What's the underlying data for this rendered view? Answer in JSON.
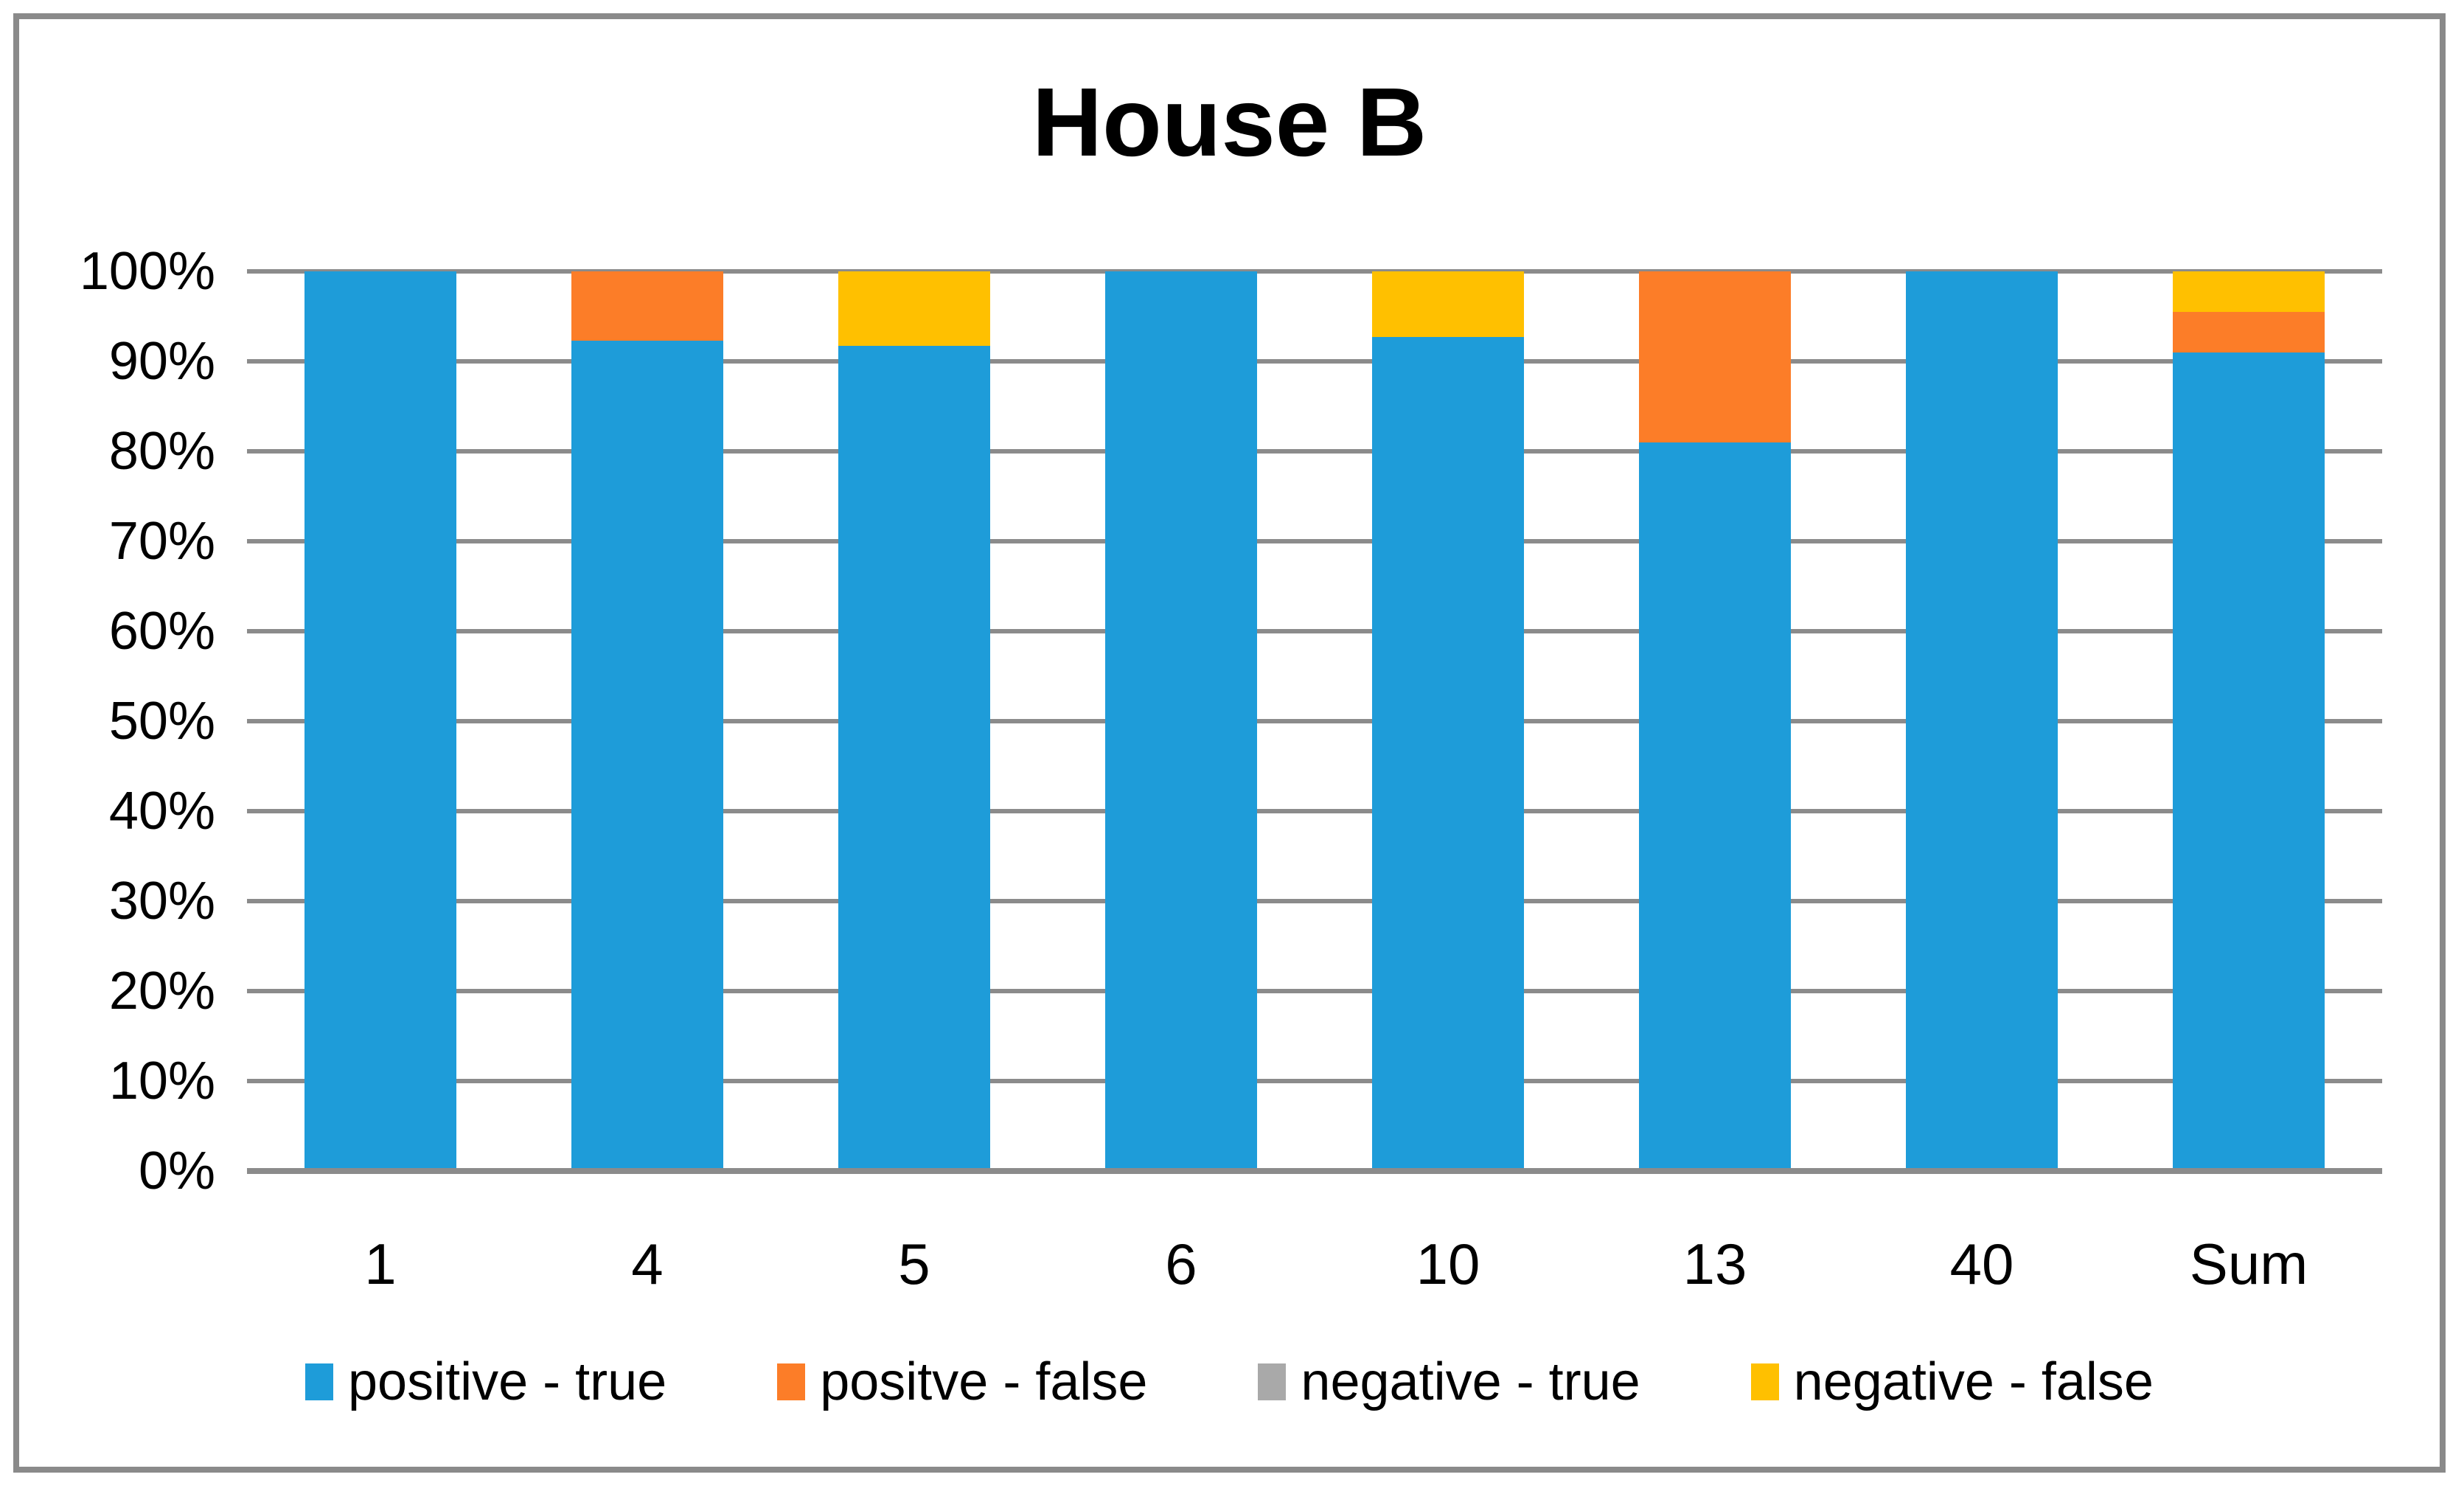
{
  "chart_data": {
    "type": "bar",
    "variant": "100-percent-stacked-column",
    "title": "House B",
    "categories": [
      "1",
      "4",
      "5",
      "6",
      "10",
      "13",
      "40",
      "Sum"
    ],
    "series": [
      {
        "name": "positive - true",
        "color": "#1E9CD9",
        "values": [
          100,
          92.3,
          91.7,
          100,
          92.7,
          81,
          100,
          91
        ]
      },
      {
        "name": "positve - false",
        "color": "#FC7D28",
        "values": [
          0,
          7.7,
          0,
          0,
          0,
          19,
          0,
          4.5
        ]
      },
      {
        "name": "negative - true",
        "color": "#A9A9A9",
        "values": [
          0,
          0,
          0,
          0,
          0,
          0,
          0,
          0
        ]
      },
      {
        "name": "negative - false",
        "color": "#FFC000",
        "values": [
          0,
          0,
          8.3,
          0,
          7.3,
          0,
          0,
          4.5
        ]
      }
    ],
    "y_axis": {
      "ticks": [
        "0%",
        "10%",
        "20%",
        "30%",
        "40%",
        "50%",
        "60%",
        "70%",
        "80%",
        "90%",
        "100%"
      ],
      "min": 0,
      "max": 100,
      "unit": "%"
    },
    "grid": true,
    "legend_position": "bottom",
    "colors": {
      "gridline": "#8B8B8B",
      "axis_line": "#8B8B8B",
      "frame_border": "#8A8A8A",
      "text": "#000000"
    }
  }
}
